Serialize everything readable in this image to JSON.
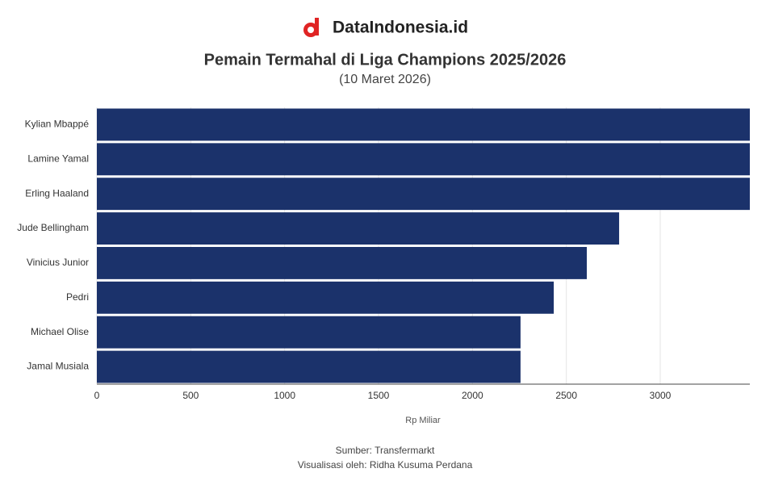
{
  "chart_data": {
    "type": "barh",
    "logo": "DataIndonesia.id",
    "title": "Pemain Termahal di Liga Champions 2025/2026",
    "subtitle": "(10 Maret 2026)",
    "x_label": "Rp Miliar",
    "source": "Sumber: Transfermarkt",
    "credit": "Visualisasi oleh: Ridha Kusuma Perdana",
    "categories": [
      "Kylian Mbappé",
      "Lamine Yamal",
      "Erling Haaland",
      "Jude Bellingham",
      "Vinicius Junior",
      "Pedri",
      "Michael Olise",
      "Jamal Musiala"
    ],
    "values": [
      3477,
      3477,
      3477,
      2781,
      2609,
      2433,
      2256,
      2256
    ],
    "color": "#1b326b",
    "xlim": [
      0,
      3477
    ],
    "xticks": [
      0,
      500,
      1000,
      1500,
      2000,
      2500,
      3000
    ],
    "grid": true
  }
}
